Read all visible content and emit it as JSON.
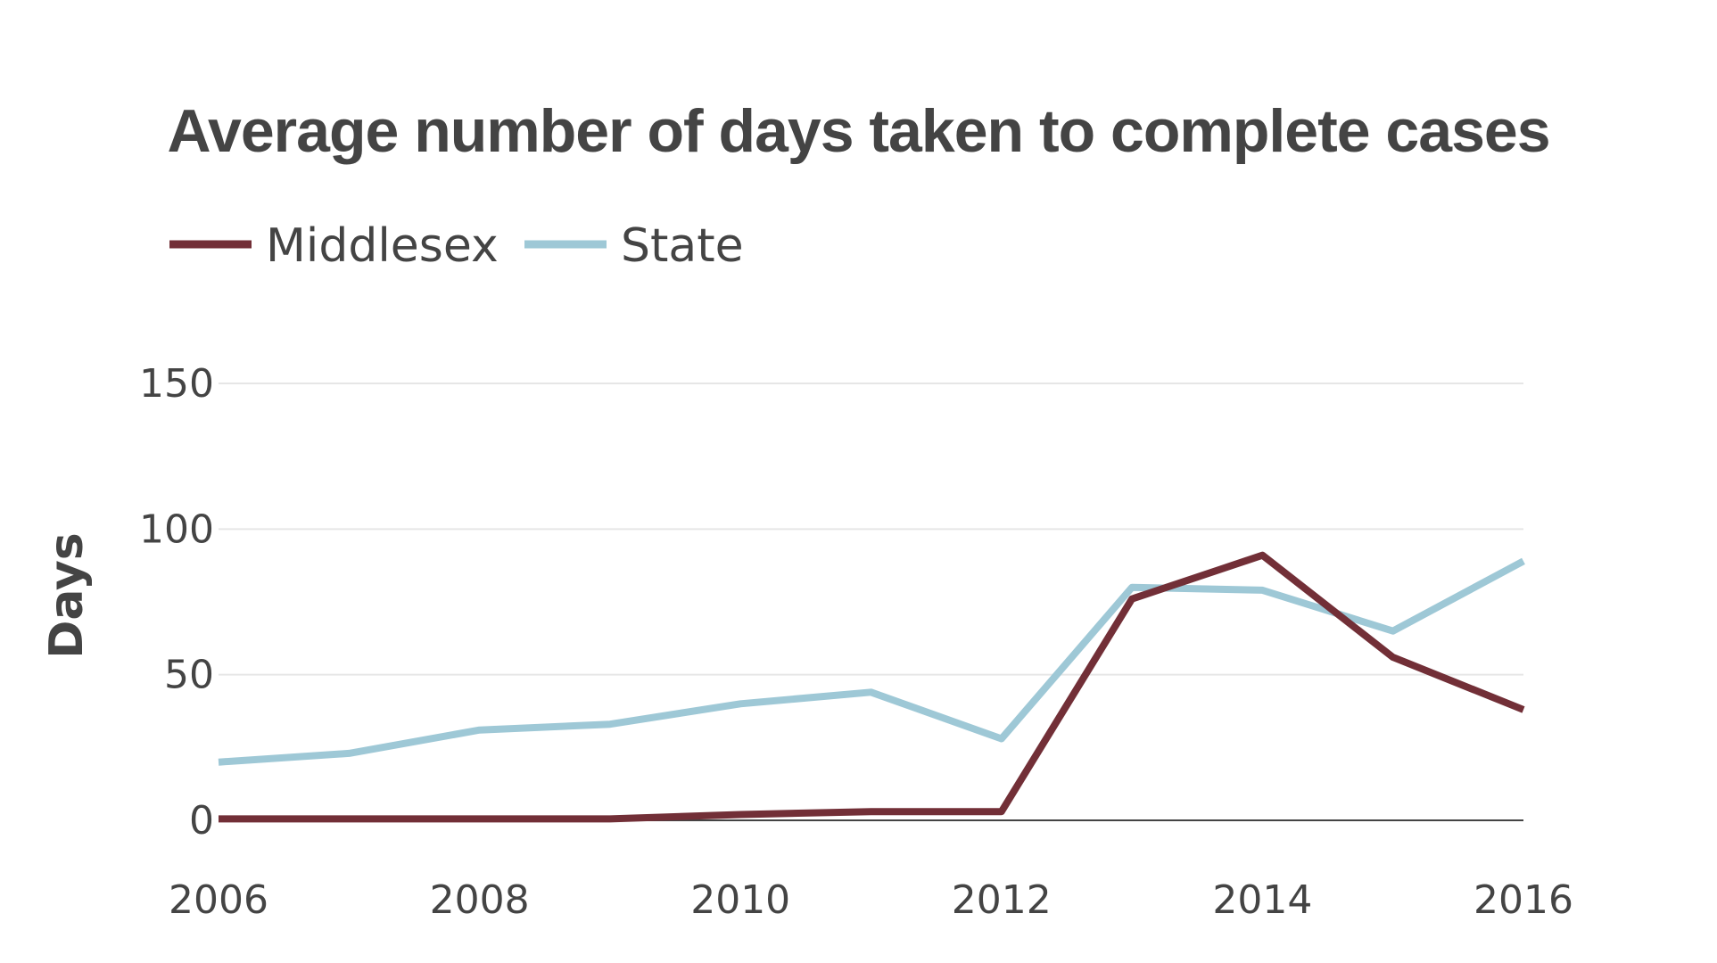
{
  "chart_data": {
    "type": "line",
    "title": "Average number of days taken to complete cases",
    "xlabel": "",
    "ylabel": "Days",
    "x": [
      2006,
      2007,
      2008,
      2009,
      2010,
      2011,
      2012,
      2013,
      2014,
      2015,
      2016
    ],
    "series": [
      {
        "name": "Middlesex",
        "color": "#722f37",
        "values": [
          0.5,
          0.5,
          0.5,
          0.5,
          2,
          3,
          3,
          76,
          91,
          56,
          38
        ]
      },
      {
        "name": "State",
        "color": "#9ec8d6",
        "values": [
          20,
          23,
          31,
          33,
          40,
          44,
          28,
          80,
          79,
          65,
          89
        ]
      }
    ],
    "xticks": [
      2006,
      2008,
      2010,
      2012,
      2014,
      2016
    ],
    "yticks": [
      0,
      50,
      100,
      150
    ],
    "xlim": [
      2006,
      2016
    ],
    "ylim": [
      0,
      150
    ],
    "grid": true,
    "legend": "top-left"
  }
}
